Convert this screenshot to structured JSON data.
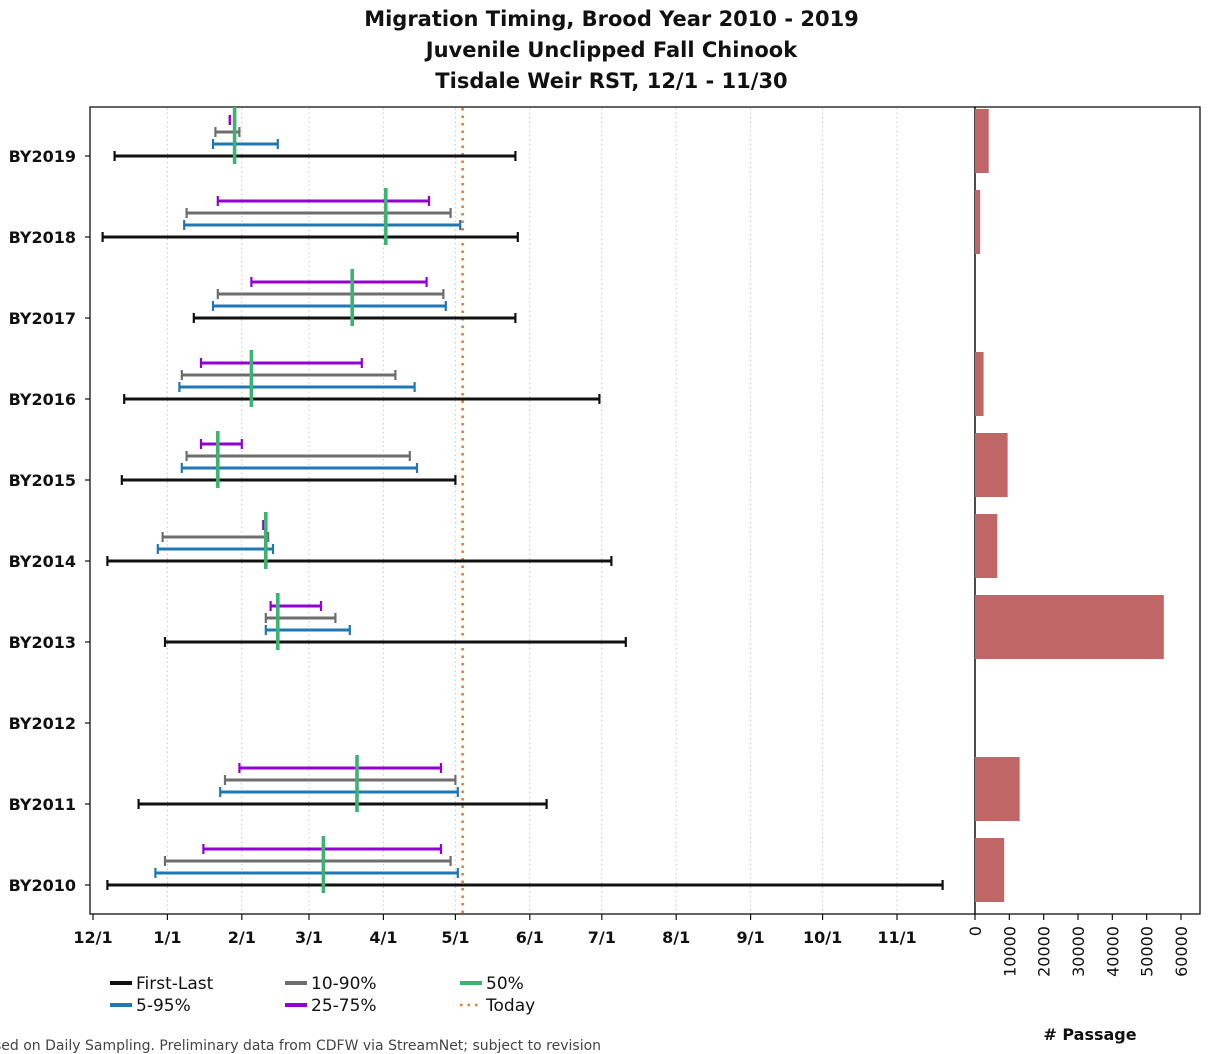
{
  "title_lines": [
    "Migration Timing, Brood Year 2010 - 2019",
    "Juvenile Unclipped Fall Chinook",
    "Tisdale Weir RST, 12/1 - 11/30"
  ],
  "footnote": "sed on Daily Sampling. Preliminary data from CDFW via StreamNet; subject to revision",
  "chart_data": [
    {
      "type": "range-timeline",
      "x_axis": {
        "kind": "date",
        "range": [
          "2018-12-01",
          "2019-11-30"
        ],
        "tick_dates": [
          "2018-12-01",
          "2019-01-01",
          "2019-02-01",
          "2019-03-01",
          "2019-04-01",
          "2019-05-01",
          "2019-06-01",
          "2019-07-01",
          "2019-08-01",
          "2019-09-01",
          "2019-10-01",
          "2019-11-01"
        ],
        "tick_labels": [
          "12/1",
          "1/1",
          "2/1",
          "3/1",
          "4/1",
          "5/1",
          "6/1",
          "7/1",
          "8/1",
          "9/1",
          "10/1",
          "11/1"
        ],
        "grid": "vertical dotted"
      },
      "today": "2019-05-04",
      "colors": {
        "first_last": "#111111",
        "p5_95": "#1f77b4",
        "p10_90": "#6e6e6e",
        "p25_75": "#9400d3",
        "p50": "#3cb371",
        "today": "#e08030"
      },
      "legend": [
        {
          "key": "first_last",
          "label": "First-Last"
        },
        {
          "key": "p5_95",
          "label": "5-95%"
        },
        {
          "key": "p10_90",
          "label": "10-90%"
        },
        {
          "key": "p25_75",
          "label": "25-75%"
        },
        {
          "key": "p50",
          "label": "50%"
        },
        {
          "key": "today",
          "label": "Today"
        }
      ],
      "legend_position": "bottom-left",
      "rows": [
        {
          "label": "BY2019",
          "first_last": [
            "2018-12-10",
            "2019-05-26"
          ],
          "p5_95": [
            "2019-01-20",
            "2019-02-16"
          ],
          "p10_90": [
            "2019-01-21",
            "2019-01-31"
          ],
          "p25_75": [
            "2019-01-27",
            "2019-01-27"
          ],
          "p50": "2019-01-29"
        },
        {
          "label": "BY2018",
          "first_last": [
            "2018-12-05",
            "2019-05-27"
          ],
          "p5_95": [
            "2019-01-08",
            "2019-05-03"
          ],
          "p10_90": [
            "2019-01-09",
            "2019-04-29"
          ],
          "p25_75": [
            "2019-01-22",
            "2019-04-20"
          ],
          "p50": "2019-04-02"
        },
        {
          "label": "BY2017",
          "first_last": [
            "2019-01-12",
            "2019-05-26"
          ],
          "p5_95": [
            "2019-01-20",
            "2019-04-27"
          ],
          "p10_90": [
            "2019-01-22",
            "2019-04-26"
          ],
          "p25_75": [
            "2019-02-05",
            "2019-04-19"
          ],
          "p50": "2019-03-19"
        },
        {
          "label": "BY2016",
          "first_last": [
            "2018-12-14",
            "2019-06-30"
          ],
          "p5_95": [
            "2019-01-06",
            "2019-04-14"
          ],
          "p10_90": [
            "2019-01-07",
            "2019-04-06"
          ],
          "p25_75": [
            "2019-01-15",
            "2019-03-23"
          ],
          "p50": "2019-02-05"
        },
        {
          "label": "BY2015",
          "first_last": [
            "2018-12-13",
            "2019-05-01"
          ],
          "p5_95": [
            "2019-01-07",
            "2019-04-15"
          ],
          "p10_90": [
            "2019-01-09",
            "2019-04-12"
          ],
          "p25_75": [
            "2019-01-15",
            "2019-02-01"
          ],
          "p50": "2019-01-22"
        },
        {
          "label": "BY2014",
          "first_last": [
            "2018-12-07",
            "2019-07-05"
          ],
          "p5_95": [
            "2018-12-28",
            "2019-02-14"
          ],
          "p10_90": [
            "2018-12-30",
            "2019-02-12"
          ],
          "p25_75": [
            "2019-02-10",
            "2019-02-10"
          ],
          "p50": "2019-02-11"
        },
        {
          "label": "BY2013",
          "first_last": [
            "2018-12-31",
            "2019-07-11"
          ],
          "p5_95": [
            "2019-02-11",
            "2019-03-18"
          ],
          "p10_90": [
            "2019-02-11",
            "2019-03-12"
          ],
          "p25_75": [
            "2019-02-13",
            "2019-03-06"
          ],
          "p50": "2019-02-16"
        },
        {
          "label": "BY2012"
        },
        {
          "label": "BY2011",
          "first_last": [
            "2018-12-20",
            "2019-06-08"
          ],
          "p5_95": [
            "2019-01-23",
            "2019-05-02"
          ],
          "p10_90": [
            "2019-01-25",
            "2019-05-01"
          ],
          "p25_75": [
            "2019-01-31",
            "2019-04-25"
          ],
          "p50": "2019-03-21"
        },
        {
          "label": "BY2010",
          "first_last": [
            "2018-12-07",
            "2019-11-20"
          ],
          "p5_95": [
            "2018-12-27",
            "2019-05-02"
          ],
          "p10_90": [
            "2018-12-31",
            "2019-04-29"
          ],
          "p25_75": [
            "2019-01-16",
            "2019-04-25"
          ],
          "p50": "2019-03-07"
        }
      ]
    },
    {
      "type": "bar",
      "orientation": "horizontal",
      "categories": [
        "BY2019",
        "BY2018",
        "BY2017",
        "BY2016",
        "BY2015",
        "BY2014",
        "BY2013",
        "BY2012",
        "BY2011",
        "BY2010"
      ],
      "values": [
        4000,
        1500,
        0,
        2500,
        9500,
        6500,
        55000,
        0,
        13000,
        8500
      ],
      "xlabel": "# Passage",
      "xlim": [
        0,
        60000
      ],
      "ticks": [
        0,
        10000,
        20000,
        30000,
        40000,
        50000,
        60000
      ],
      "color": "#c06666"
    }
  ]
}
